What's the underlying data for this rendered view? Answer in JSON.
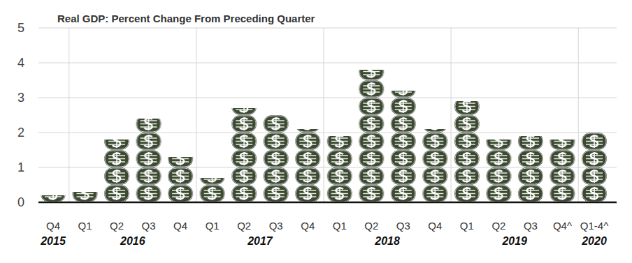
{
  "chart_data": {
    "type": "bar",
    "title": "Real GDP: Percent Change From Preceding Quarter",
    "categories": [
      "Q4",
      "Q1",
      "Q2",
      "Q3",
      "Q4",
      "Q1",
      "Q2",
      "Q3",
      "Q4",
      "Q1",
      "Q2",
      "Q3",
      "Q4",
      "Q1",
      "Q2",
      "Q3",
      "Q4^",
      "Q1-4^"
    ],
    "year_groups": [
      {
        "label": "2015",
        "start": 0,
        "end": 0
      },
      {
        "label": "2016",
        "start": 1,
        "end": 4
      },
      {
        "label": "2017",
        "start": 5,
        "end": 8
      },
      {
        "label": "2018",
        "start": 9,
        "end": 12
      },
      {
        "label": "2019",
        "start": 13,
        "end": 16
      },
      {
        "label": "2020",
        "start": 17,
        "end": 17
      }
    ],
    "values": [
      0.2,
      0.3,
      1.8,
      2.4,
      1.3,
      0.7,
      2.7,
      2.5,
      2.1,
      1.9,
      3.8,
      3.2,
      2.1,
      2.9,
      1.8,
      1.9,
      1.8,
      2.0
    ],
    "color": "#3b4a31",
    "ylim": [
      0,
      5
    ],
    "yticks": [
      0,
      1,
      2,
      3,
      4,
      5
    ],
    "grid": true
  }
}
